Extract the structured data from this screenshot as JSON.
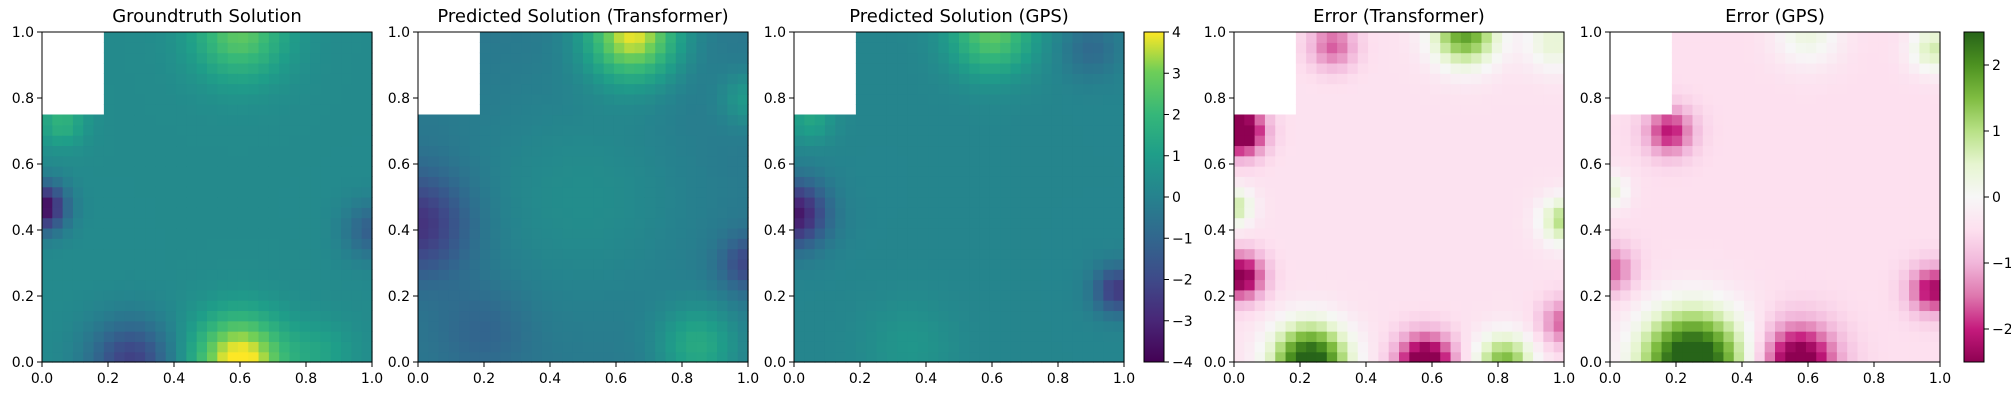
{
  "chart_data": [
    {
      "type": "heatmap",
      "title": "Groundtruth Solution",
      "field": "groundtruth",
      "colormap": "viridis",
      "xlim": [
        0,
        1
      ],
      "ylim": [
        0,
        1
      ],
      "xticks": [
        "0.0",
        "0.2",
        "0.4",
        "0.6",
        "0.8",
        "1.0"
      ],
      "yticks": [
        "0.0",
        "0.2",
        "0.4",
        "0.6",
        "0.8",
        "1.0"
      ],
      "masked_region": {
        "x": [
          0,
          0.1875
        ],
        "y": [
          0.75,
          1.0
        ]
      },
      "grid": false
    },
    {
      "type": "heatmap",
      "title": "Predicted Solution (Transformer)",
      "field": "pred_transformer",
      "colormap": "viridis",
      "xlim": [
        0,
        1
      ],
      "ylim": [
        0,
        1
      ],
      "xticks": [
        "0.0",
        "0.2",
        "0.4",
        "0.6",
        "0.8",
        "1.0"
      ],
      "yticks": [
        "0.0",
        "0.2",
        "0.4",
        "0.6",
        "0.8",
        "1.0"
      ],
      "masked_region": {
        "x": [
          0,
          0.1875
        ],
        "y": [
          0.75,
          1.0
        ]
      },
      "grid": false
    },
    {
      "type": "heatmap",
      "title": "Predicted Solution (GPS)",
      "field": "pred_gps",
      "colormap": "viridis",
      "xlim": [
        0,
        1
      ],
      "ylim": [
        0,
        1
      ],
      "xticks": [
        "0.0",
        "0.2",
        "0.4",
        "0.6",
        "0.8",
        "1.0"
      ],
      "yticks": [
        "0.0",
        "0.2",
        "0.4",
        "0.6",
        "0.8",
        "1.0"
      ],
      "masked_region": {
        "x": [
          0,
          0.1875
        ],
        "y": [
          0.75,
          1.0
        ]
      },
      "grid": false
    },
    {
      "type": "heatmap",
      "title": "Error (Transformer)",
      "field": "err_transformer",
      "colormap": "PiYG",
      "xlim": [
        0,
        1
      ],
      "ylim": [
        0,
        1
      ],
      "xticks": [
        "0.0",
        "0.2",
        "0.4",
        "0.6",
        "0.8",
        "1.0"
      ],
      "yticks": [
        "0.0",
        "0.2",
        "0.4",
        "0.6",
        "0.8",
        "1.0"
      ],
      "masked_region": {
        "x": [
          0,
          0.1875
        ],
        "y": [
          0.75,
          1.0
        ]
      },
      "grid": false
    },
    {
      "type": "heatmap",
      "title": "Error (GPS)",
      "field": "err_gps",
      "colormap": "PiYG",
      "xlim": [
        0,
        1
      ],
      "ylim": [
        0,
        1
      ],
      "xticks": [
        "0.0",
        "0.2",
        "0.4",
        "0.6",
        "0.8",
        "1.0"
      ],
      "yticks": [
        "0.0",
        "0.2",
        "0.4",
        "0.6",
        "0.8",
        "1.0"
      ],
      "masked_region": {
        "x": [
          0,
          0.1875
        ],
        "y": [
          0.75,
          1.0
        ]
      },
      "grid": false
    }
  ],
  "colorbars": [
    {
      "colormap": "viridis",
      "vmin": -4,
      "vmax": 4,
      "ticks": [
        4,
        3,
        2,
        1,
        0,
        -1,
        -2,
        -3,
        -4
      ],
      "tick_labels": [
        "4",
        "3",
        "2",
        "1",
        "0",
        "−1",
        "−2",
        "−3",
        "−4"
      ]
    },
    {
      "colormap": "PiYG",
      "vmin": -2.5,
      "vmax": 2.5,
      "ticks": [
        2,
        1,
        0,
        -1,
        -2
      ],
      "tick_labels": [
        "2",
        "1",
        "0",
        "−1",
        "−2"
      ]
    }
  ]
}
